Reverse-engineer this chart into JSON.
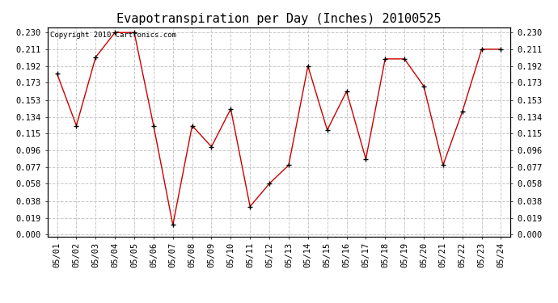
{
  "title": "Evapotranspiration per Day (Inches) 20100525",
  "copyright_text": "Copyright 2010 Cartronics.com",
  "dates": [
    "05/01",
    "05/02",
    "05/03",
    "05/04",
    "05/05",
    "05/06",
    "05/07",
    "05/08",
    "05/09",
    "05/10",
    "05/11",
    "05/12",
    "05/13",
    "05/14",
    "05/15",
    "05/16",
    "05/17",
    "05/18",
    "05/19",
    "05/20",
    "05/21",
    "05/22",
    "05/23",
    "05/24"
  ],
  "values": [
    0.183,
    0.124,
    0.202,
    0.23,
    0.23,
    0.124,
    0.011,
    0.124,
    0.1,
    0.143,
    0.032,
    0.058,
    0.079,
    0.192,
    0.119,
    0.163,
    0.086,
    0.2,
    0.2,
    0.169,
    0.079,
    0.14,
    0.211,
    0.211
  ],
  "y_ticks": [
    0.0,
    0.019,
    0.038,
    0.058,
    0.077,
    0.096,
    0.115,
    0.134,
    0.153,
    0.173,
    0.192,
    0.211,
    0.23
  ],
  "ylim_min": -0.002,
  "ylim_max": 0.236,
  "line_color": "#cc0000",
  "marker": "+",
  "marker_color": "#000000",
  "bg_color": "#ffffff",
  "grid_color": "#c8c8c8",
  "title_fontsize": 11,
  "tick_fontsize": 7.5,
  "copyright_fontsize": 6.5
}
